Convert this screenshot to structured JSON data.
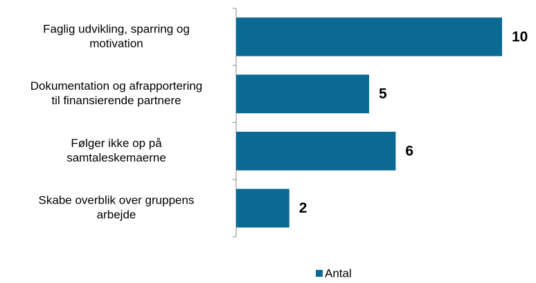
{
  "chart_data": {
    "type": "barh",
    "categories": [
      [
        "Faglig udvikling, sparring og",
        "motivation"
      ],
      [
        "Dokumentation og afrapportering",
        "til finansierende partnere"
      ],
      [
        "Følger ikke op på",
        "samtaleskemaerne"
      ],
      [
        "Skabe overblik over gruppens",
        "arbejde"
      ]
    ],
    "series": [
      {
        "name": "Antal",
        "color": "#0b6a93",
        "values": [
          10,
          5,
          6,
          2
        ]
      }
    ],
    "xlim": [
      0,
      10
    ],
    "legend": "bottom"
  }
}
